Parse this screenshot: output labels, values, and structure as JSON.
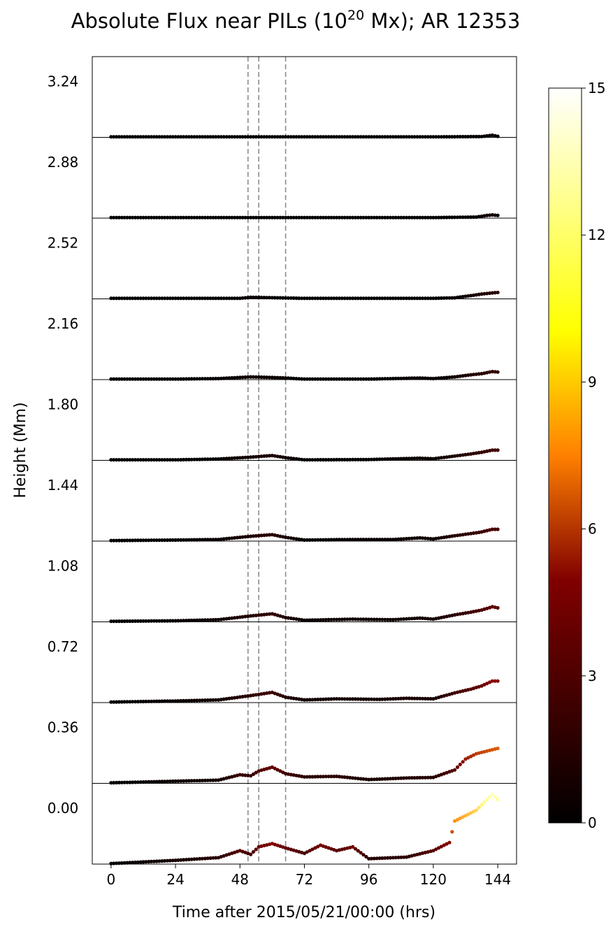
{
  "chart_data": {
    "type": "scatter",
    "title_main": "Absolute Flux near PILs (10",
    "title_sup": "20",
    "title_end": " Mx); AR 12353",
    "xlabel": "Time after 2015/05/21/00:00 (hrs)",
    "ylabel": "Height (Mm)",
    "xlim": [
      -7,
      151
    ],
    "xticks": [
      "0",
      "24",
      "48",
      "72",
      "96",
      "120",
      "144"
    ],
    "xtick_values": [
      0,
      24,
      48,
      72,
      96,
      120,
      144
    ],
    "panel_heights": [
      "3.24",
      "2.88",
      "2.52",
      "2.16",
      "1.80",
      "1.44",
      "1.08",
      "0.72",
      "0.36",
      "0.00"
    ],
    "vlines_x": [
      51,
      55,
      65
    ],
    "colorbar": {
      "colormap": "afmhot",
      "range": [
        0,
        15
      ],
      "ticks": [
        "0",
        "3",
        "6",
        "9",
        "12",
        "15"
      ],
      "tick_values": [
        0,
        3,
        6,
        9,
        12,
        15
      ]
    },
    "series": [
      {
        "height": "3.24",
        "panel_ymax": 15,
        "points": [
          [
            0,
            0.1
          ],
          [
            24,
            0.1
          ],
          [
            48,
            0.1
          ],
          [
            72,
            0.1
          ],
          [
            96,
            0.1
          ],
          [
            120,
            0.1
          ],
          [
            138,
            0.15
          ],
          [
            142,
            0.4
          ],
          [
            144,
            0.2
          ]
        ]
      },
      {
        "height": "2.88",
        "panel_ymax": 15,
        "points": [
          [
            0,
            0.1
          ],
          [
            24,
            0.1
          ],
          [
            48,
            0.1
          ],
          [
            72,
            0.1
          ],
          [
            96,
            0.1
          ],
          [
            120,
            0.1
          ],
          [
            136,
            0.2
          ],
          [
            140,
            0.5
          ],
          [
            142,
            0.6
          ],
          [
            144,
            0.5
          ]
        ]
      },
      {
        "height": "2.52",
        "panel_ymax": 15,
        "points": [
          [
            0,
            0.1
          ],
          [
            24,
            0.1
          ],
          [
            48,
            0.1
          ],
          [
            52,
            0.3
          ],
          [
            72,
            0.1
          ],
          [
            96,
            0.1
          ],
          [
            120,
            0.1
          ],
          [
            128,
            0.2
          ],
          [
            134,
            0.6
          ],
          [
            138,
            0.9
          ],
          [
            142,
            1.1
          ],
          [
            144,
            1.2
          ]
        ]
      },
      {
        "height": "2.16",
        "panel_ymax": 15,
        "points": [
          [
            0,
            0.1
          ],
          [
            24,
            0.1
          ],
          [
            40,
            0.2
          ],
          [
            52,
            0.5
          ],
          [
            60,
            0.4
          ],
          [
            65,
            0.3
          ],
          [
            72,
            0.1
          ],
          [
            96,
            0.1
          ],
          [
            115,
            0.3
          ],
          [
            120,
            0.2
          ],
          [
            128,
            0.5
          ],
          [
            134,
            0.9
          ],
          [
            138,
            1.1
          ],
          [
            142,
            1.5
          ],
          [
            144,
            1.4
          ]
        ]
      },
      {
        "height": "1.80",
        "panel_ymax": 15,
        "points": [
          [
            0,
            0.1
          ],
          [
            24,
            0.1
          ],
          [
            40,
            0.25
          ],
          [
            52,
            0.6
          ],
          [
            60,
            0.9
          ],
          [
            65,
            0.5
          ],
          [
            72,
            0.1
          ],
          [
            96,
            0.15
          ],
          [
            115,
            0.4
          ],
          [
            120,
            0.3
          ],
          [
            128,
            0.8
          ],
          [
            134,
            1.2
          ],
          [
            138,
            1.5
          ],
          [
            142,
            1.9
          ],
          [
            144,
            1.9
          ]
        ]
      },
      {
        "height": "1.44",
        "panel_ymax": 15,
        "points": [
          [
            0,
            0.1
          ],
          [
            24,
            0.2
          ],
          [
            40,
            0.3
          ],
          [
            52,
            0.9
          ],
          [
            60,
            1.2
          ],
          [
            65,
            0.7
          ],
          [
            72,
            0.2
          ],
          [
            90,
            0.3
          ],
          [
            105,
            0.3
          ],
          [
            115,
            0.6
          ],
          [
            120,
            0.4
          ],
          [
            128,
            1.0
          ],
          [
            134,
            1.4
          ],
          [
            138,
            1.7
          ],
          [
            142,
            2.2
          ],
          [
            144,
            2.2
          ]
        ]
      },
      {
        "height": "1.08",
        "panel_ymax": 15,
        "points": [
          [
            0,
            0.1
          ],
          [
            24,
            0.2
          ],
          [
            40,
            0.4
          ],
          [
            52,
            1.1
          ],
          [
            60,
            1.5
          ],
          [
            65,
            0.8
          ],
          [
            72,
            0.3
          ],
          [
            90,
            0.5
          ],
          [
            105,
            0.4
          ],
          [
            115,
            0.7
          ],
          [
            120,
            0.5
          ],
          [
            128,
            1.3
          ],
          [
            134,
            1.8
          ],
          [
            138,
            2.2
          ],
          [
            142,
            2.8
          ],
          [
            144,
            2.6
          ]
        ]
      },
      {
        "height": "0.72",
        "panel_ymax": 15,
        "points": [
          [
            0,
            0.1
          ],
          [
            24,
            0.3
          ],
          [
            40,
            0.5
          ],
          [
            52,
            1.3
          ],
          [
            60,
            1.9
          ],
          [
            65,
            1.0
          ],
          [
            72,
            0.5
          ],
          [
            84,
            0.7
          ],
          [
            100,
            0.6
          ],
          [
            110,
            0.8
          ],
          [
            120,
            0.7
          ],
          [
            128,
            1.8
          ],
          [
            134,
            2.5
          ],
          [
            138,
            3.1
          ],
          [
            142,
            4.0
          ],
          [
            144,
            4.0
          ]
        ]
      },
      {
        "height": "0.36",
        "panel_ymax": 15,
        "points": [
          [
            0,
            0.1
          ],
          [
            24,
            0.4
          ],
          [
            40,
            0.6
          ],
          [
            48,
            1.6
          ],
          [
            52,
            1.4
          ],
          [
            55,
            2.3
          ],
          [
            60,
            3.0
          ],
          [
            65,
            1.8
          ],
          [
            72,
            1.2
          ],
          [
            84,
            1.3
          ],
          [
            96,
            0.7
          ],
          [
            110,
            1.0
          ],
          [
            120,
            1.1
          ],
          [
            128,
            2.5
          ],
          [
            132,
            4.5
          ],
          [
            136,
            5.5
          ],
          [
            140,
            6.0
          ],
          [
            144,
            6.5
          ]
        ]
      },
      {
        "height": "0.00",
        "panel_ymax": 15,
        "points": [
          [
            0,
            0.1
          ],
          [
            24,
            0.7
          ],
          [
            40,
            1.2
          ],
          [
            48,
            2.5
          ],
          [
            52,
            1.8
          ],
          [
            55,
            3.2
          ],
          [
            60,
            3.8
          ],
          [
            65,
            3.0
          ],
          [
            72,
            2.0
          ],
          [
            78,
            3.5
          ],
          [
            84,
            2.5
          ],
          [
            90,
            3.2
          ],
          [
            96,
            1.0
          ],
          [
            110,
            1.3
          ],
          [
            120,
            2.5
          ],
          [
            126,
            4.0
          ],
          [
            128,
            8.0
          ],
          [
            132,
            9.0
          ],
          [
            136,
            10.0
          ],
          [
            140,
            12.0
          ],
          [
            142,
            13.0
          ],
          [
            144,
            12.0
          ]
        ]
      }
    ]
  }
}
